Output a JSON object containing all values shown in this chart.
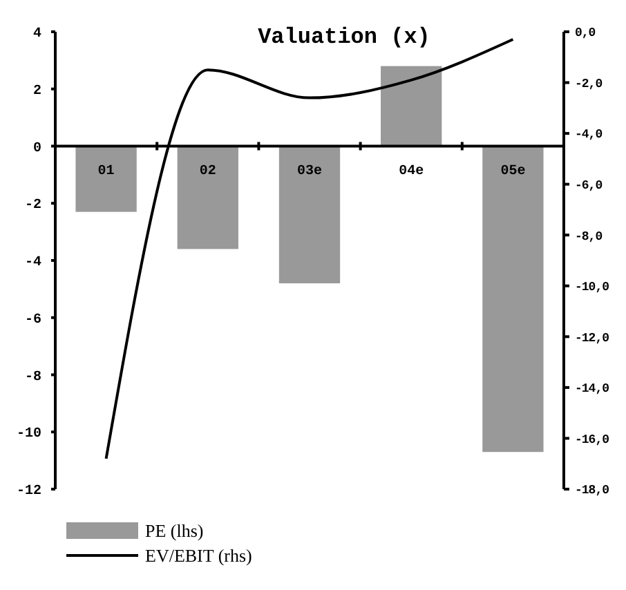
{
  "chart_data": {
    "type": "bar",
    "title": "Valuation (x)",
    "categories": [
      "01",
      "02",
      "03e",
      "04e",
      "05e"
    ],
    "series": [
      {
        "name": "PE (lhs)",
        "color": "#999999",
        "values": [
          -2.3,
          -3.6,
          -4.8,
          2.8,
          -10.7
        ]
      },
      {
        "name": "EV/EBIT (rhs)",
        "type": "line",
        "axis": "y2",
        "color": "#000000",
        "values": [
          -16.8,
          -1.5,
          -2.6,
          -1.9,
          -0.3
        ]
      }
    ],
    "ylim": [
      -12,
      4
    ],
    "yticks": [
      -12,
      -10,
      -8,
      -6,
      -4,
      -2,
      0,
      2,
      4
    ],
    "y2lim": [
      -18,
      0
    ],
    "y2ticks": [
      {
        "value": -18,
        "label": "-18,0"
      },
      {
        "value": -16,
        "label": "-16,0"
      },
      {
        "value": -14,
        "label": "-14,0"
      },
      {
        "value": -12,
        "label": "-12,0"
      },
      {
        "value": -10,
        "label": "-10,0"
      },
      {
        "value": -8,
        "label": "-8,0"
      },
      {
        "value": -6,
        "label": "-6,0"
      },
      {
        "value": -4,
        "label": "-4,0"
      },
      {
        "value": -2,
        "label": "-2,0"
      },
      {
        "value": 0,
        "label": "0,0"
      }
    ],
    "legend": "bottom left",
    "grid": false,
    "line_style": "solid",
    "marker": "none"
  }
}
